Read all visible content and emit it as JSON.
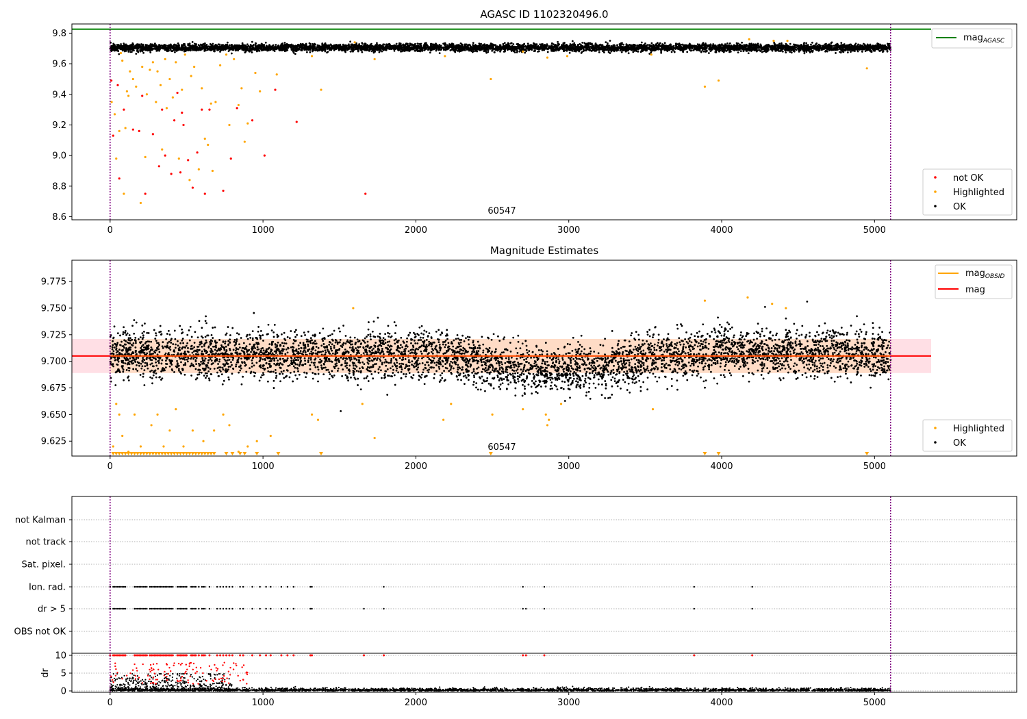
{
  "colors": {
    "agasc_line": "#008000",
    "not_ok": "#ff0000",
    "highlighted": "#ffa500",
    "ok": "#000000",
    "obsid_mag": "#ffa500",
    "mag_line": "#ff0000",
    "obs_boundary": "#800080",
    "band_pink": "#ffc0cb",
    "band_peach": "#ffdab9"
  },
  "chart_data": [
    {
      "type": "scatter",
      "title": "AGASC ID 1102320496.0",
      "xlim": [
        -250,
        5930
      ],
      "ylim": [
        8.58,
        9.86
      ],
      "xticks": [
        0,
        1000,
        2000,
        3000,
        4000,
        5000
      ],
      "yticks": [
        8.6,
        8.8,
        9.0,
        9.2,
        9.4,
        9.6,
        9.8
      ],
      "xtick_labels": [
        "0",
        "1000",
        "2000",
        "3000",
        "4000",
        "5000"
      ],
      "ytick_labels": [
        "8.6",
        "8.8",
        "9.0",
        "9.2",
        "9.4",
        "9.6",
        "9.8"
      ],
      "obs_label": "60547",
      "obs_boundaries": [
        0,
        5105
      ],
      "mag_agasc": 9.826,
      "legend_top": {
        "mag_agasc_prefix": "mag",
        "mag_agasc_sub": "AGASC"
      },
      "legend_bottom": [
        "not OK",
        "Highlighted",
        "OK"
      ],
      "series": [
        {
          "name": "not OK",
          "values": [
            [
              8,
              9.49
            ],
            [
              20,
              9.13
            ],
            [
              50,
              9.46
            ],
            [
              60,
              8.85
            ],
            [
              90,
              9.3
            ],
            [
              150,
              9.17
            ],
            [
              190,
              9.16
            ],
            [
              210,
              9.39
            ],
            [
              230,
              8.75
            ],
            [
              280,
              9.14
            ],
            [
              320,
              8.93
            ],
            [
              340,
              9.3
            ],
            [
              360,
              9.0
            ],
            [
              400,
              8.88
            ],
            [
              420,
              9.23
            ],
            [
              440,
              9.41
            ],
            [
              460,
              8.89
            ],
            [
              470,
              9.28
            ],
            [
              480,
              9.2
            ],
            [
              510,
              8.97
            ],
            [
              540,
              8.79
            ],
            [
              570,
              9.02
            ],
            [
              600,
              9.3
            ],
            [
              620,
              8.75
            ],
            [
              650,
              9.3
            ],
            [
              740,
              8.77
            ],
            [
              790,
              8.98
            ],
            [
              830,
              9.31
            ],
            [
              930,
              9.23
            ],
            [
              1010,
              9.0
            ],
            [
              1080,
              9.43
            ],
            [
              1220,
              9.22
            ],
            [
              1670,
              8.75
            ]
          ]
        },
        {
          "name": "Highlighted",
          "values": [
            [
              10,
              9.35
            ],
            [
              30,
              9.27
            ],
            [
              40,
              8.98
            ],
            [
              60,
              9.16
            ],
            [
              70,
              9.67
            ],
            [
              80,
              9.62
            ],
            [
              90,
              8.75
            ],
            [
              100,
              9.18
            ],
            [
              110,
              9.42
            ],
            [
              120,
              9.39
            ],
            [
              130,
              9.55
            ],
            [
              150,
              9.5
            ],
            [
              170,
              9.45
            ],
            [
              200,
              8.69
            ],
            [
              210,
              9.58
            ],
            [
              230,
              8.99
            ],
            [
              240,
              9.4
            ],
            [
              260,
              9.56
            ],
            [
              280,
              9.61
            ],
            [
              300,
              9.35
            ],
            [
              310,
              9.55
            ],
            [
              330,
              9.46
            ],
            [
              340,
              9.04
            ],
            [
              360,
              9.63
            ],
            [
              370,
              9.31
            ],
            [
              390,
              9.5
            ],
            [
              410,
              9.38
            ],
            [
              430,
              9.61
            ],
            [
              450,
              8.98
            ],
            [
              470,
              9.43
            ],
            [
              490,
              9.66
            ],
            [
              520,
              8.84
            ],
            [
              530,
              9.52
            ],
            [
              550,
              9.58
            ],
            [
              580,
              8.91
            ],
            [
              600,
              9.44
            ],
            [
              620,
              9.11
            ],
            [
              640,
              9.07
            ],
            [
              660,
              9.34
            ],
            [
              670,
              8.9
            ],
            [
              690,
              9.35
            ],
            [
              720,
              9.59
            ],
            [
              760,
              9.66
            ],
            [
              780,
              9.2
            ],
            [
              810,
              9.63
            ],
            [
              840,
              9.33
            ],
            [
              860,
              9.44
            ],
            [
              880,
              9.09
            ],
            [
              900,
              9.21
            ],
            [
              950,
              9.54
            ],
            [
              980,
              9.42
            ],
            [
              1090,
              9.53
            ],
            [
              1320,
              9.65
            ],
            [
              1380,
              9.43
            ],
            [
              1600,
              9.74
            ],
            [
              1730,
              9.63
            ],
            [
              2190,
              9.65
            ],
            [
              2490,
              9.5
            ],
            [
              2700,
              9.68
            ],
            [
              2860,
              9.64
            ],
            [
              2990,
              9.65
            ],
            [
              3540,
              9.66
            ],
            [
              3890,
              9.45
            ],
            [
              3980,
              9.49
            ],
            [
              4180,
              9.76
            ],
            [
              4340,
              9.75
            ],
            [
              4430,
              9.75
            ],
            [
              4950,
              9.57
            ]
          ]
        },
        {
          "name": "OK",
          "x_range": [
            0,
            5105
          ],
          "points": 5500,
          "level": 9.705,
          "spread": 0.012
        }
      ]
    },
    {
      "type": "scatter",
      "title": "Magnitude Estimates",
      "xlim": [
        -250,
        5930
      ],
      "ylim": [
        9.611,
        9.795
      ],
      "xticks": [
        0,
        1000,
        2000,
        3000,
        4000,
        5000
      ],
      "yticks": [
        9.625,
        9.65,
        9.675,
        9.7,
        9.725,
        9.75,
        9.775
      ],
      "xtick_labels": [
        "0",
        "1000",
        "2000",
        "3000",
        "4000",
        "5000"
      ],
      "ytick_labels": [
        "9.625",
        "9.650",
        "9.675",
        "9.700",
        "9.725",
        "9.750",
        "9.775"
      ],
      "obs_label": "60547",
      "obs_boundaries": [
        0,
        5105
      ],
      "mag": 9.705,
      "mag_obsid": 9.705,
      "mag_band": [
        9.689,
        9.721
      ],
      "legend_top": {
        "mag_obsid_prefix": "mag",
        "mag_obsid_sub": "OBSID",
        "mag_label": "mag"
      },
      "legend_bottom": [
        "Highlighted",
        "OK"
      ],
      "series": [
        {
          "name": "Highlighted",
          "values": [
            [
              20,
              9.62
            ],
            [
              40,
              9.66
            ],
            [
              60,
              9.65
            ],
            [
              80,
              9.63
            ],
            [
              120,
              9.615
            ],
            [
              160,
              9.65
            ],
            [
              200,
              9.62
            ],
            [
              270,
              9.64
            ],
            [
              310,
              9.65
            ],
            [
              350,
              9.62
            ],
            [
              390,
              9.635
            ],
            [
              430,
              9.655
            ],
            [
              480,
              9.62
            ],
            [
              540,
              9.635
            ],
            [
              610,
              9.625
            ],
            [
              680,
              9.635
            ],
            [
              740,
              9.65
            ],
            [
              780,
              9.64
            ],
            [
              840,
              9.615
            ],
            [
              900,
              9.62
            ],
            [
              960,
              9.625
            ],
            [
              1050,
              9.63
            ],
            [
              1320,
              9.65
            ],
            [
              1360,
              9.645
            ],
            [
              1590,
              9.75
            ],
            [
              1650,
              9.66
            ],
            [
              1730,
              9.628
            ],
            [
              2180,
              9.645
            ],
            [
              2230,
              9.66
            ],
            [
              2500,
              9.65
            ],
            [
              2700,
              9.655
            ],
            [
              2850,
              9.65
            ],
            [
              2860,
              9.64
            ],
            [
              2870,
              9.645
            ],
            [
              2950,
              9.66
            ],
            [
              3550,
              9.655
            ],
            [
              3890,
              9.757
            ],
            [
              4170,
              9.76
            ],
            [
              4330,
              9.754
            ],
            [
              4420,
              9.75
            ]
          ]
        },
        {
          "name": "OK",
          "x_range": [
            0,
            5105
          ],
          "points": 5000
        }
      ],
      "clipped_low": [
        20,
        40,
        60,
        80,
        100,
        120,
        140,
        160,
        180,
        200,
        220,
        240,
        260,
        280,
        300,
        320,
        340,
        360,
        380,
        400,
        420,
        440,
        460,
        480,
        500,
        520,
        540,
        560,
        580,
        600,
        620,
        640,
        660,
        680,
        760,
        800,
        850,
        880,
        960,
        1100,
        1380,
        2490,
        3890,
        3980,
        4950
      ]
    },
    {
      "type": "scatter",
      "title": "",
      "xlim": [
        -250,
        5930
      ],
      "flag_labels": [
        "not Kalman",
        "not track",
        "Sat. pixel.",
        "Ion. rad.",
        "dr > 5",
        "OBS not OK"
      ],
      "flags": {
        "Ion. rad.": [
          0,
          20,
          30,
          40,
          50,
          60,
          70,
          80,
          90,
          100,
          160,
          170,
          180,
          190,
          200,
          210,
          220,
          230,
          240,
          260,
          270,
          280,
          290,
          300,
          310,
          320,
          330,
          340,
          350,
          360,
          370,
          380,
          390,
          400,
          410,
          440,
          450,
          460,
          470,
          480,
          490,
          500,
          530,
          540,
          550,
          560,
          580,
          600,
          610,
          620,
          650,
          700,
          720,
          740,
          760,
          780,
          800,
          850,
          870,
          930,
          980,
          1020,
          1050,
          1120,
          1160,
          1200,
          1310,
          1320,
          1790,
          2700,
          2840,
          3820,
          4200
        ],
        "dr > 5": [
          0,
          20,
          30,
          40,
          50,
          60,
          70,
          80,
          90,
          100,
          160,
          170,
          180,
          190,
          200,
          210,
          220,
          230,
          240,
          260,
          270,
          280,
          290,
          300,
          310,
          320,
          330,
          340,
          350,
          360,
          370,
          380,
          390,
          400,
          410,
          440,
          450,
          460,
          470,
          480,
          490,
          500,
          530,
          540,
          550,
          560,
          580,
          600,
          610,
          620,
          650,
          700,
          720,
          740,
          760,
          780,
          800,
          850,
          870,
          930,
          980,
          1020,
          1050,
          1120,
          1160,
          1200,
          1310,
          1320,
          1660,
          1790,
          2700,
          2720,
          2840,
          3820,
          4200
        ]
      },
      "dr_ylim": [
        -0.5,
        10.5
      ],
      "dr_yticks": [
        0,
        5,
        10
      ],
      "dr_ytick_labels": [
        "0",
        "5",
        "10"
      ],
      "dr_ylabel": "dr",
      "xticks": [
        0,
        1000,
        2000,
        3000,
        4000,
        5000
      ],
      "xtick_labels": [
        "0",
        "1000",
        "2000",
        "3000",
        "4000",
        "5000"
      ],
      "obs_boundaries": [
        0,
        5105
      ]
    }
  ]
}
